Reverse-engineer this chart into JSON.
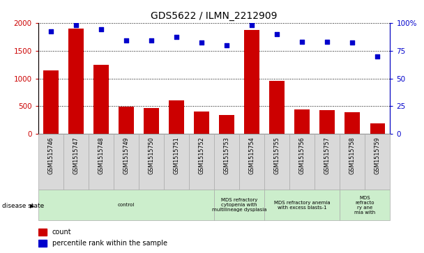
{
  "title": "GDS5622 / ILMN_2212909",
  "samples": [
    "GSM1515746",
    "GSM1515747",
    "GSM1515748",
    "GSM1515749",
    "GSM1515750",
    "GSM1515751",
    "GSM1515752",
    "GSM1515753",
    "GSM1515754",
    "GSM1515755",
    "GSM1515756",
    "GSM1515757",
    "GSM1515758",
    "GSM1515759"
  ],
  "counts": [
    1150,
    1900,
    1240,
    490,
    470,
    610,
    410,
    340,
    1870,
    960,
    440,
    430,
    390,
    190
  ],
  "percentiles": [
    92,
    98,
    94,
    84,
    84,
    87,
    82,
    80,
    98,
    90,
    83,
    83,
    82,
    70
  ],
  "ylim_left": [
    0,
    2000
  ],
  "ylim_right": [
    0,
    100
  ],
  "yticks_left": [
    0,
    500,
    1000,
    1500,
    2000
  ],
  "ytick_labels_left": [
    "0",
    "500",
    "1000",
    "1500",
    "2000"
  ],
  "yticks_right": [
    0,
    25,
    50,
    75,
    100
  ],
  "ytick_labels_right": [
    "0",
    "25",
    "50",
    "75",
    "100%"
  ],
  "bar_color": "#cc0000",
  "dot_color": "#0000cc",
  "disease_groups": [
    {
      "label": "control",
      "start": 0,
      "end": 7,
      "color": "#cceecc"
    },
    {
      "label": "MDS refractory\ncytopenia with\nmultilineage dysplasia",
      "start": 7,
      "end": 9,
      "color": "#cceecc"
    },
    {
      "label": "MDS refractory anemia\nwith excess blasts-1",
      "start": 9,
      "end": 12,
      "color": "#cceecc"
    },
    {
      "label": "MDS\nrefracto\nry ane\nmia with",
      "start": 12,
      "end": 14,
      "color": "#cceecc"
    }
  ],
  "disease_state_label": "disease state",
  "legend_count_label": "count",
  "legend_percentile_label": "percentile rank within the sample",
  "bar_color_legend": "#cc0000",
  "dot_color_legend": "#0000cc",
  "tick_label_color_left": "#cc0000",
  "tick_label_color_right": "#0000cc",
  "grid_color": "#000000",
  "sample_box_color": "#d9d9d9",
  "sample_box_edge": "#aaaaaa"
}
